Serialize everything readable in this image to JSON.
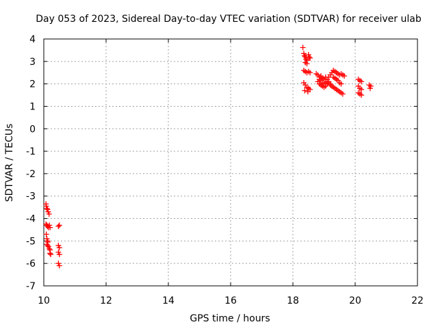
{
  "chart_data": {
    "type": "scatter",
    "title": "Day 053 of 2023, Sidereal Day-to-day VTEC variation (SDTVAR) for receiver ulab",
    "xlabel": "GPS time / hours",
    "ylabel": "SDTVAR / TECUs",
    "xlim": [
      10,
      22
    ],
    "ylim": [
      -7,
      4
    ],
    "x_ticks": [
      10,
      12,
      14,
      16,
      18,
      20,
      22
    ],
    "y_ticks": [
      4,
      3,
      2,
      1,
      0,
      -1,
      -2,
      -3,
      -4,
      -5,
      -6,
      -7
    ],
    "x_tick_labels": [
      "10",
      "12",
      "14",
      "16",
      "18",
      "20",
      "22"
    ],
    "y_tick_labels": [
      "4",
      "3",
      "2",
      "1",
      "0",
      "-1",
      "-2",
      "-3",
      "-4",
      "-5",
      "-6",
      "-7"
    ],
    "grid": true,
    "marker": "plus",
    "marker_color": "#ff0000",
    "series": [
      {
        "points": [
          [
            10.07,
            -3.35
          ],
          [
            10.08,
            -3.45
          ],
          [
            10.1,
            -3.55
          ],
          [
            10.12,
            -3.6
          ],
          [
            10.14,
            -3.7
          ],
          [
            10.17,
            -3.8
          ],
          [
            10.07,
            -4.25
          ],
          [
            10.1,
            -4.3
          ],
          [
            10.12,
            -4.35
          ],
          [
            10.15,
            -4.4
          ],
          [
            10.18,
            -4.3
          ],
          [
            10.2,
            -4.4
          ],
          [
            10.08,
            -4.7
          ],
          [
            10.1,
            -4.9
          ],
          [
            10.12,
            -5.0
          ],
          [
            10.13,
            -5.05
          ],
          [
            10.1,
            -5.15
          ],
          [
            10.12,
            -5.2
          ],
          [
            10.15,
            -5.25
          ],
          [
            10.18,
            -5.35
          ],
          [
            10.2,
            -5.4
          ],
          [
            10.2,
            -5.55
          ],
          [
            10.22,
            -5.6
          ],
          [
            10.47,
            -4.35
          ],
          [
            10.5,
            -4.3
          ],
          [
            10.47,
            -5.2
          ],
          [
            10.5,
            -5.3
          ],
          [
            10.47,
            -5.5
          ],
          [
            10.5,
            -5.6
          ],
          [
            10.47,
            -6.0
          ],
          [
            10.5,
            -6.1
          ],
          [
            18.32,
            3.62
          ],
          [
            18.35,
            3.35
          ],
          [
            18.37,
            3.25
          ],
          [
            18.4,
            3.2
          ],
          [
            18.42,
            3.1
          ],
          [
            18.45,
            3.05
          ],
          [
            18.4,
            2.95
          ],
          [
            18.45,
            2.9
          ],
          [
            18.5,
            3.3
          ],
          [
            18.52,
            3.2
          ],
          [
            18.55,
            3.15
          ],
          [
            18.35,
            2.6
          ],
          [
            18.4,
            2.55
          ],
          [
            18.45,
            2.5
          ],
          [
            18.5,
            2.55
          ],
          [
            18.55,
            2.5
          ],
          [
            18.35,
            2.05
          ],
          [
            18.4,
            1.95
          ],
          [
            18.45,
            1.85
          ],
          [
            18.5,
            1.8
          ],
          [
            18.55,
            1.75
          ],
          [
            18.38,
            1.7
          ],
          [
            18.48,
            1.65
          ],
          [
            18.75,
            2.45
          ],
          [
            18.8,
            2.4
          ],
          [
            18.85,
            2.3
          ],
          [
            18.9,
            2.35
          ],
          [
            18.95,
            2.25
          ],
          [
            19.0,
            2.2
          ],
          [
            19.05,
            2.3
          ],
          [
            19.1,
            2.2
          ],
          [
            19.15,
            2.3
          ],
          [
            19.2,
            2.4
          ],
          [
            19.25,
            2.5
          ],
          [
            19.3,
            2.6
          ],
          [
            19.35,
            2.55
          ],
          [
            19.4,
            2.5
          ],
          [
            19.45,
            2.45
          ],
          [
            19.5,
            2.4
          ],
          [
            19.55,
            2.45
          ],
          [
            19.6,
            2.4
          ],
          [
            19.65,
            2.35
          ],
          [
            18.8,
            2.1
          ],
          [
            18.85,
            2.0
          ],
          [
            18.9,
            1.95
          ],
          [
            18.95,
            1.9
          ],
          [
            19.0,
            1.85
          ],
          [
            19.05,
            1.9
          ],
          [
            19.1,
            2.0
          ],
          [
            19.15,
            2.1
          ],
          [
            19.2,
            2.0
          ],
          [
            19.25,
            1.9
          ],
          [
            19.3,
            1.85
          ],
          [
            19.35,
            1.8
          ],
          [
            19.4,
            1.75
          ],
          [
            19.45,
            1.7
          ],
          [
            19.5,
            1.65
          ],
          [
            19.55,
            1.6
          ],
          [
            19.6,
            1.55
          ],
          [
            18.85,
            2.2
          ],
          [
            18.9,
            2.15
          ],
          [
            18.95,
            2.05
          ],
          [
            19.0,
            2.0
          ],
          [
            19.05,
            2.05
          ],
          [
            19.1,
            2.1
          ],
          [
            19.15,
            2.05
          ],
          [
            19.2,
            1.95
          ],
          [
            19.3,
            2.3
          ],
          [
            19.35,
            2.25
          ],
          [
            19.4,
            2.2
          ],
          [
            19.45,
            2.15
          ],
          [
            19.5,
            2.05
          ],
          [
            19.55,
            2.0
          ],
          [
            20.1,
            2.2
          ],
          [
            20.15,
            2.15
          ],
          [
            20.2,
            2.1
          ],
          [
            20.1,
            1.9
          ],
          [
            20.15,
            1.8
          ],
          [
            20.2,
            1.75
          ],
          [
            20.1,
            1.6
          ],
          [
            20.15,
            1.55
          ],
          [
            20.2,
            1.5
          ],
          [
            20.45,
            1.95
          ],
          [
            20.5,
            1.9
          ],
          [
            20.48,
            1.8
          ]
        ]
      }
    ]
  }
}
